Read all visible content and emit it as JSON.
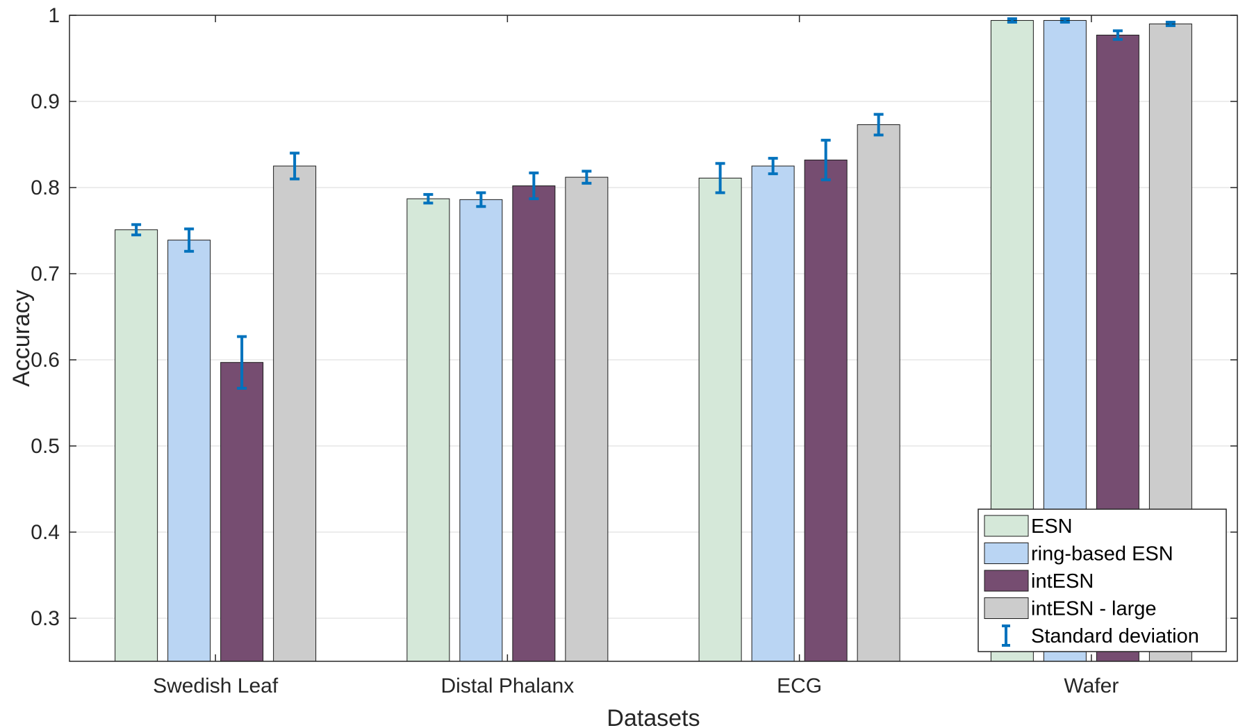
{
  "chart_data": {
    "type": "bar",
    "xlabel": "Datasets",
    "ylabel": "Accuracy",
    "ylim": [
      0.25,
      1.0
    ],
    "yticks": [
      "0.3",
      "0.4",
      "0.5",
      "0.6",
      "0.7",
      "0.8",
      "0.9",
      "1"
    ],
    "grid": true,
    "legend_position": "bottom-right",
    "categories": [
      "Swedish Leaf",
      "Distal Phalanx",
      "ECG",
      "Wafer"
    ],
    "series": [
      {
        "name": "ESN",
        "color": "#d5e8d9",
        "values": [
          0.751,
          0.787,
          0.811,
          0.994
        ],
        "std": [
          0.006,
          0.005,
          0.017,
          0.002
        ]
      },
      {
        "name": "ring-based ESN",
        "color": "#bad5f3",
        "values": [
          0.739,
          0.786,
          0.825,
          0.994
        ],
        "std": [
          0.013,
          0.008,
          0.009,
          0.002
        ]
      },
      {
        "name": "intESN",
        "color": "#764d71",
        "values": [
          0.597,
          0.802,
          0.832,
          0.977
        ],
        "std": [
          0.03,
          0.015,
          0.023,
          0.005
        ]
      },
      {
        "name": "intESN - large",
        "color": "#cccccc",
        "values": [
          0.825,
          0.812,
          0.873,
          0.99
        ],
        "std": [
          0.015,
          0.007,
          0.012,
          0.002
        ]
      }
    ],
    "errorbar_legend": "Standard deviation",
    "errorbar_color": "#0072bd"
  }
}
